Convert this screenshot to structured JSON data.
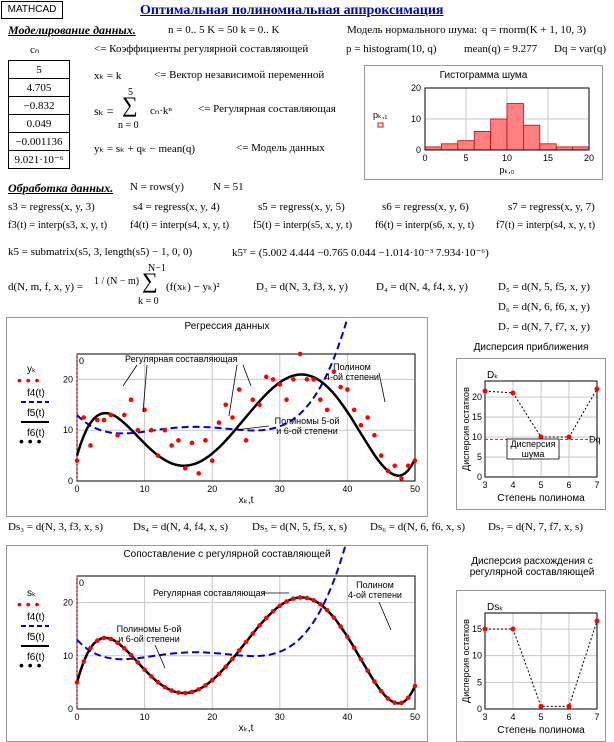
{
  "app": {
    "badge": "MATHCAD",
    "title": "Оптимальная полиномиальная аппроксимация"
  },
  "model": {
    "heading": "Моделирование данных.",
    "params": "n = 0.. 5   K = 50   k = 0.. K",
    "noise_model_label": "Модель нормального шума:",
    "noise_expr": "q = rnorm(K + 1, 10, 3)",
    "coef_label": "cₙ",
    "coef_comment": "<= Коэффициенты регулярной составляющей",
    "coefs": [
      "5",
      "4.705",
      "−0.832",
      "0.049",
      "−0.001136",
      "9.021·10⁻⁶"
    ],
    "xk": "xₖ = k",
    "xk_comment": "<= Вектор независимой переменной",
    "sk": "sₖ =",
    "sum_top": "5",
    "sum_bottom": "n = 0",
    "sum_body": "cₙ·kⁿ",
    "sk_comment": "<= Регулярная составляющая",
    "yk": "yₖ = sₖ + qₖ − mean(q)",
    "yk_comment": "<= Модель данных",
    "hist_expr": "p = histogram(10, q)",
    "mean_expr": "mean(q) = 9.277",
    "dq_expr": "Dq = var(q)"
  },
  "histogram": {
    "title": "Гистограмма шума",
    "ylabel": "pₖ,₁",
    "xlabel": "pₖ,₀",
    "xticks": [
      "0",
      "5",
      "10",
      "15",
      "20"
    ],
    "yticks": [
      "0",
      "10",
      "20"
    ]
  },
  "processing": {
    "heading": "Обработка данных.",
    "n_rows": "N = rows(y)",
    "n_val": "N = 51",
    "regress": [
      "s3 = regress(x, y, 3)",
      "s4 = regress(x, y, 4)",
      "s5 = regress(x, y, 5)",
      "s6 = regress(x, y, 6)",
      "s7 = regress(x, y, 7)"
    ],
    "interp": [
      "f3(t) = interp(s3, x, y, t)",
      "f4(t) = interp(s4, x, y, t)",
      "f5(t) = interp(s5, x, y, t)",
      "f6(t) = interp(s6, x, y, t)",
      "f7(t) = interp(s4, x, y, t)"
    ],
    "k5": "k5 = submatrix(s5, 3, length(s5) − 1, 0, 0)",
    "k5T": "k5ᵀ = (5.002   4.444   −0.765   0.044   −1.014·10⁻³   7.934·10⁻⁶)",
    "d_def": "d(N, m, f, x, y) = ",
    "d_frac": "1 / (N − m)",
    "d_sum_top": "N−1",
    "d_sum_bottom": "k = 0",
    "d_body": "(f(xₖ) − yₖ)²",
    "D3": "D₃ = d(N, 3, f3, x, y)",
    "D4": "D₄ = d(N, 4, f4, x, y)",
    "D5": "D₅ = d(N, 5, f5, x, y)",
    "D6": "D₆ = d(N, 6, f6, x, y)",
    "D7": "D₇ = d(N, 7, f7, x, y)",
    "Ds": [
      "Ds₃ = d(N, 3, f3, x, s)",
      "Ds₄ = d(N, 4, f4, x, s)",
      "Ds₅ = d(N, 5, f5, x, s)",
      "Ds₆ = d(N, 6, f6, x, s)",
      "Ds₇ = d(N, 7, f7, x, s)"
    ]
  },
  "colors": {
    "data": "#ff0000",
    "f4": "#0000cc",
    "fit": "#000000",
    "grid": "#c8c8c8"
  },
  "chart_data": [
    {
      "type": "line",
      "title": "Регрессия данных",
      "xlabel": "xₖ,t",
      "ylabel": "yₖ",
      "xlim": [
        0,
        50
      ],
      "ylim": [
        0,
        25
      ],
      "xticks": [
        "0",
        "10",
        "20",
        "30",
        "40",
        "50"
      ],
      "yticks": [
        "0",
        "10",
        "20"
      ],
      "legend": [
        "yₖ",
        "f4(t)",
        "f5(t)",
        "f6(t)"
      ],
      "annotations": [
        "Регулярная составляющая",
        "Полином 4-ой степени",
        "Полиномы 5-ой и 6-ой степени"
      ],
      "points_y": [
        4,
        12.5,
        7,
        12,
        12,
        13,
        9,
        13,
        16,
        10,
        14,
        10,
        5,
        10,
        7,
        8,
        2.5,
        7.5,
        1.5,
        8,
        4,
        11.5,
        15,
        12.5,
        18,
        8,
        16,
        15,
        20.5,
        20,
        19,
        16,
        20,
        25,
        20,
        20,
        16,
        14,
        21.5,
        18.5,
        18,
        14,
        11,
        12.5,
        9,
        5,
        2,
        3,
        0.5,
        3,
        4
      ]
    },
    {
      "type": "scatter",
      "title": "Дисперсия приближения",
      "xlabel": "Степень полинома",
      "ylabel": "Дисперсия остатков",
      "x": [
        3,
        4,
        5,
        6,
        7
      ],
      "y": [
        21.5,
        21,
        10,
        10,
        22
      ],
      "ref_label": "Dq",
      "ref_value": 9.4,
      "top_label": "Dₖ",
      "annotation": "Дисперсия шума",
      "xticks": [
        "3",
        "4",
        "5",
        "6",
        "7"
      ],
      "yticks": [
        "0",
        "5",
        "10",
        "15",
        "20"
      ]
    },
    {
      "type": "line",
      "title": "Сопоставление с регулярной составляющей",
      "xlabel": "xₖ,t",
      "ylabel": "sₖ",
      "xlim": [
        0,
        50
      ],
      "ylim": [
        0,
        25
      ],
      "xticks": [
        "0",
        "10",
        "20",
        "30",
        "40",
        "50"
      ],
      "yticks": [
        "0",
        "10",
        "20"
      ],
      "legend": [
        "sₖ",
        "f4(t)",
        "f5(t)",
        "f6(t)"
      ],
      "annotations": [
        "Регулярная составляющая",
        "Полином 4-ой степени",
        "Полиномы 5-ой и 6-ой степени"
      ]
    },
    {
      "type": "scatter",
      "title": "Дисперсия расхождения с регулярной составляющей",
      "xlabel": "Степень полинома",
      "ylabel": "Дисперсия остатков",
      "x": [
        3,
        4,
        5,
        6,
        7
      ],
      "y": [
        15,
        15,
        0.5,
        0.5,
        16.5
      ],
      "top_label": "Dsₖ",
      "xticks": [
        "3",
        "4",
        "5",
        "6",
        "7"
      ],
      "yticks": [
        "0",
        "5",
        "10",
        "15"
      ]
    },
    {
      "type": "bar",
      "title": "Гистограмма шума",
      "categories": [
        1,
        3,
        5,
        7,
        9,
        11,
        13,
        15,
        17,
        19
      ],
      "values": [
        1,
        2,
        3,
        6,
        10,
        15,
        8,
        2,
        1,
        1
      ],
      "xlim": [
        0,
        20
      ],
      "ylim": [
        0,
        20
      ]
    }
  ]
}
